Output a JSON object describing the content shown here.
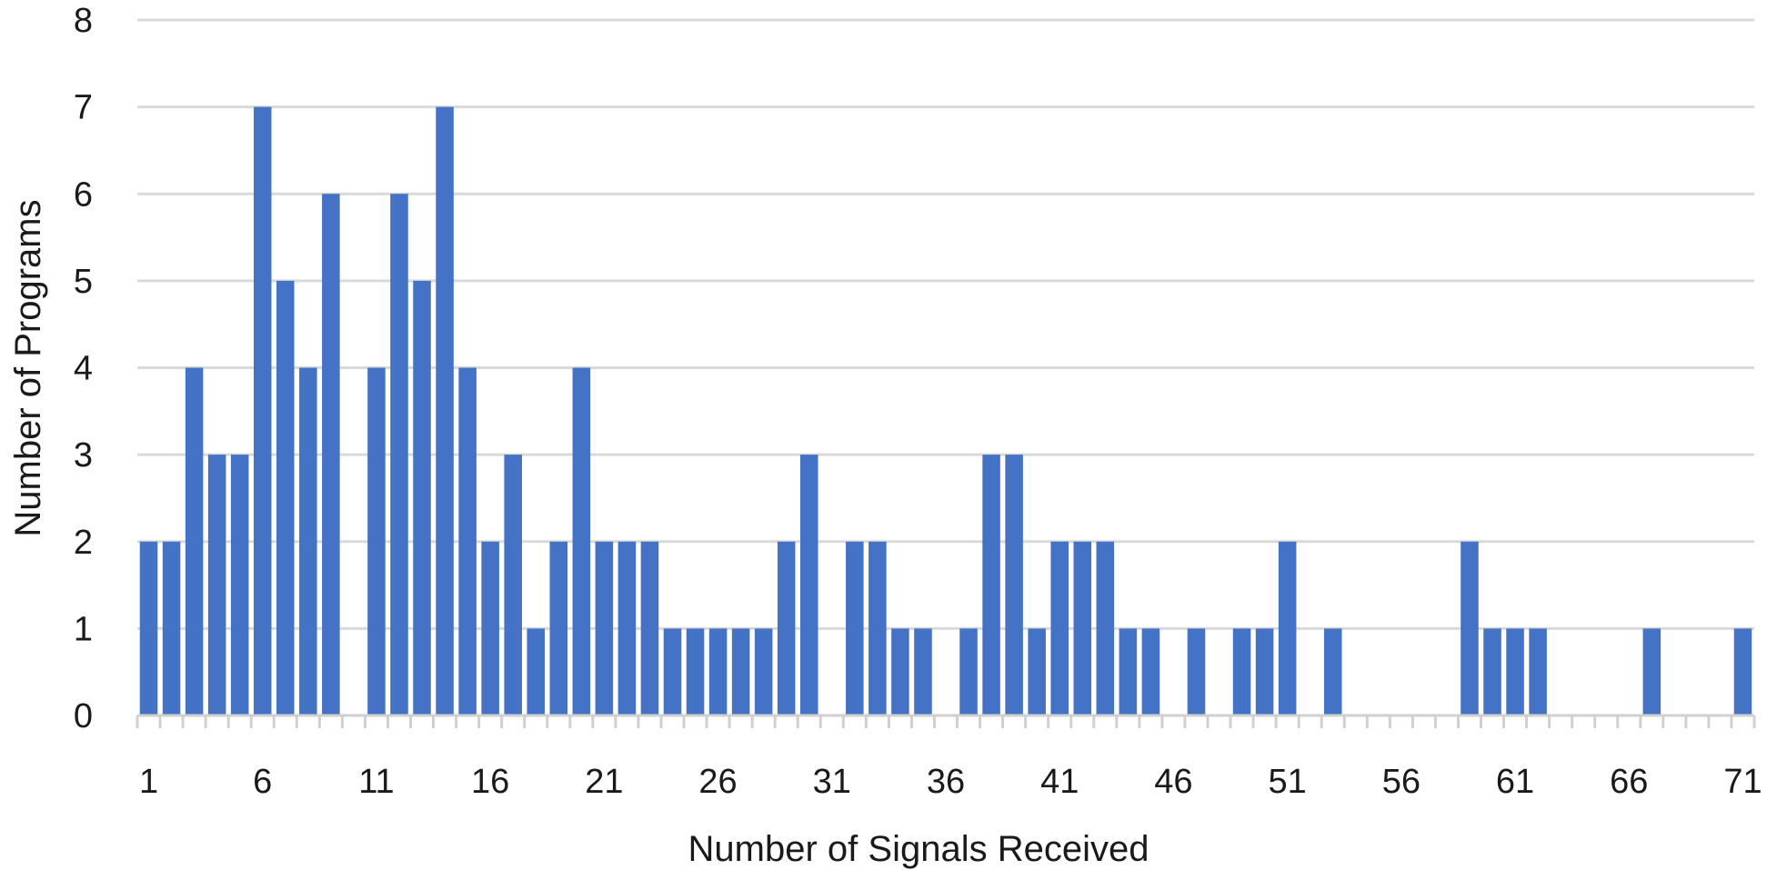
{
  "chart_data": {
    "type": "bar",
    "title": "",
    "xlabel": "Number of Signals Received",
    "ylabel": "Number of Programs",
    "ylim": [
      0,
      8
    ],
    "yticks": [
      "0",
      "1",
      "2",
      "3",
      "4",
      "5",
      "6",
      "7",
      "8"
    ],
    "xtick_labels": [
      "1",
      "6",
      "11",
      "16",
      "21",
      "26",
      "31",
      "36",
      "41",
      "46",
      "51",
      "56",
      "61",
      "66",
      "71"
    ],
    "grid": true,
    "legend": "none",
    "bar_color": "#4472C4",
    "categories": [
      "1",
      "2",
      "3",
      "4",
      "5",
      "6",
      "7",
      "8",
      "9",
      "10",
      "11",
      "12",
      "13",
      "14",
      "15",
      "16",
      "17",
      "18",
      "19",
      "20",
      "21",
      "22",
      "23",
      "24",
      "25",
      "26",
      "27",
      "28",
      "29",
      "30",
      "31",
      "32",
      "33",
      "34",
      "35",
      "36",
      "37",
      "38",
      "39",
      "40",
      "41",
      "42",
      "43",
      "44",
      "45",
      "46",
      "47",
      "48",
      "49",
      "50",
      "51",
      "52",
      "53",
      "54",
      "55",
      "56",
      "57",
      "58",
      "59",
      "60",
      "61",
      "62",
      "63",
      "64",
      "65",
      "66",
      "67",
      "68",
      "69",
      "70",
      "71"
    ],
    "values": [
      2,
      2,
      4,
      3,
      3,
      7,
      5,
      4,
      6,
      0,
      4,
      6,
      5,
      7,
      4,
      2,
      3,
      1,
      2,
      4,
      2,
      2,
      2,
      1,
      1,
      1,
      1,
      1,
      2,
      3,
      0,
      2,
      2,
      1,
      1,
      0,
      1,
      3,
      3,
      1,
      2,
      2,
      2,
      1,
      1,
      0,
      1,
      0,
      1,
      1,
      2,
      0,
      1,
      0,
      0,
      0,
      0,
      0,
      2,
      1,
      1,
      1,
      0,
      0,
      0,
      0,
      1,
      0,
      0,
      0,
      1
    ]
  }
}
